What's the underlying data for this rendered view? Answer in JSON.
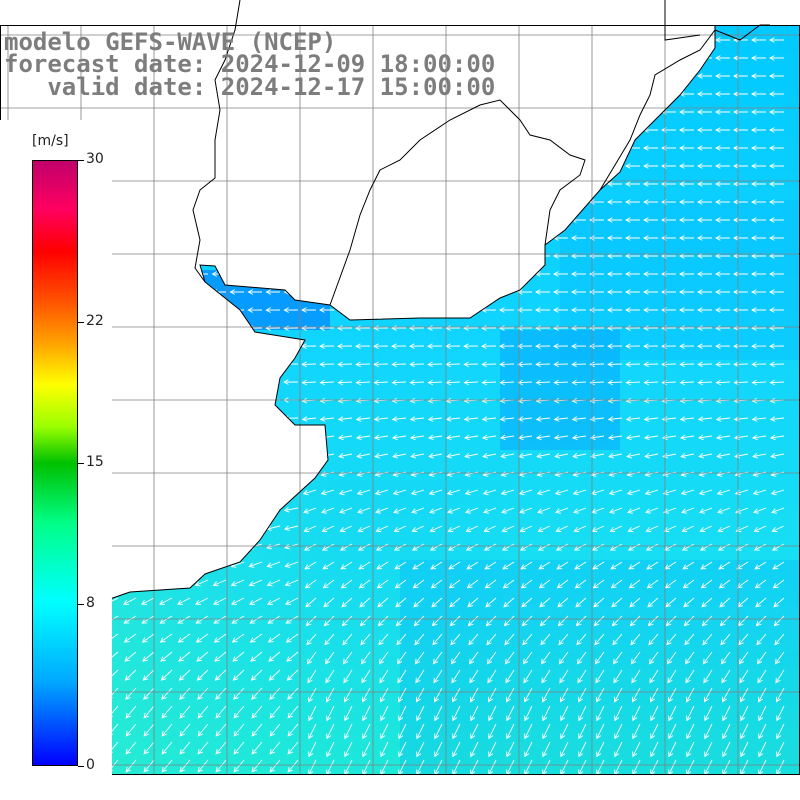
{
  "title": {
    "line1": "modelo GEFS-WAVE (NCEP)",
    "line2": "forecast date: 2024-12-09 18:00:00",
    "line3": "   valid date: 2024-12-17 15:00:00"
  },
  "colorbar": {
    "unit": "[m/s]",
    "ticks": [
      "30",
      "22",
      "15",
      "8",
      "0"
    ],
    "tick_values": [
      30,
      22,
      15,
      8,
      0
    ],
    "range": [
      0,
      30
    ]
  },
  "colors": {
    "land": "#ffffff",
    "coast": "#000000",
    "grid": "#888888",
    "arrow": "#ffffff",
    "title": "#7d7d7d"
  },
  "map": {
    "wind_direction": "from east-northeast",
    "coastline": "Rio de la Plata estuary and southern Brazil / Uruguay coast"
  }
}
